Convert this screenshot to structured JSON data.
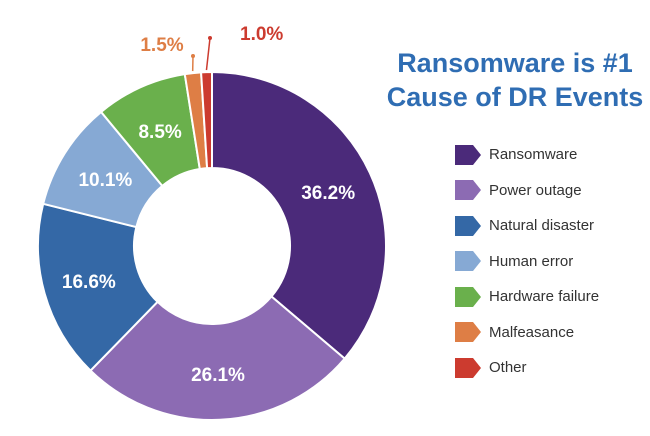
{
  "title_lines": [
    "Ransomware is #1",
    "Cause of DR Events"
  ],
  "chart_data": {
    "type": "pie",
    "donut": true,
    "title": "Ransomware is #1 Cause of DR Events",
    "categories": [
      "Ransomware",
      "Power outage",
      "Natural disaster",
      "Human error",
      "Hardware failure",
      "Malfeasance",
      "Other"
    ],
    "values": [
      36.2,
      26.1,
      16.6,
      10.1,
      8.5,
      1.5,
      1.0
    ],
    "labels": [
      "36.2%",
      "26.1%",
      "16.6%",
      "10.1%",
      "8.5%",
      "1.5%",
      "1.0%"
    ],
    "colors": [
      "#4b2a7a",
      "#8c6bb3",
      "#3468a6",
      "#86a9d4",
      "#6ab04c",
      "#de7e45",
      "#cc3b2f"
    ],
    "legend_position": "right"
  }
}
